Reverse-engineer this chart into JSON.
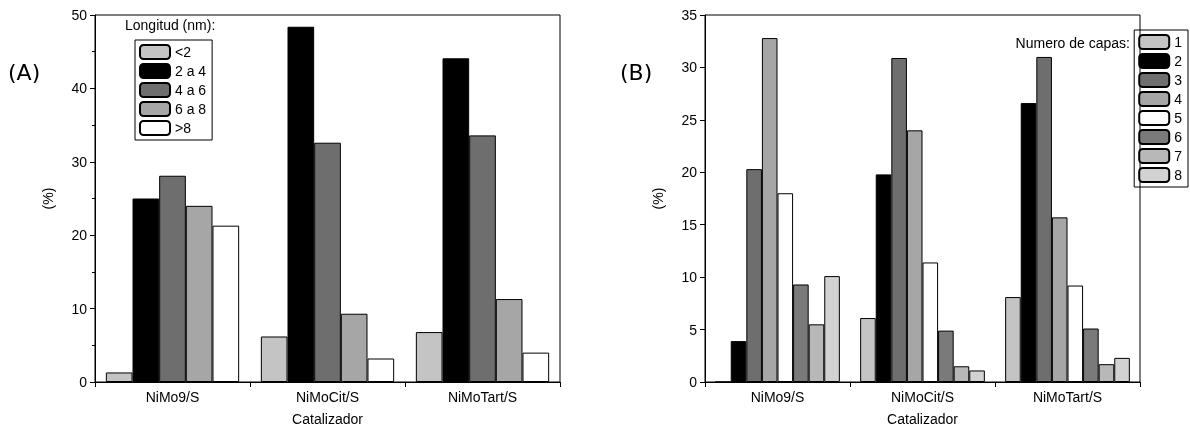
{
  "chart_data": [
    {
      "type": "bar",
      "xlabel": "Catalizador",
      "ylabel": "(%)",
      "legend_title": "Longitud (nm):",
      "annotations": [
        "(A)"
      ],
      "categories": [
        "NiMo9/S",
        "NiMoCit/S",
        "NiMoTart/S"
      ],
      "ylim": [
        0,
        50
      ],
      "yticks": [
        0,
        10,
        20,
        30,
        40,
        50
      ],
      "grid": false,
      "legend": "top left",
      "series": [
        {
          "name": "<2",
          "color": "#c4c4c4",
          "values": [
            1.3,
            6.2,
            6.8
          ]
        },
        {
          "name": "2 a 4",
          "color": "#000000",
          "values": [
            25.0,
            48.4,
            44.1
          ]
        },
        {
          "name": "4 a 6",
          "color": "#6e6e6e",
          "values": [
            28.1,
            32.6,
            33.6
          ]
        },
        {
          "name": "6 a 8",
          "color": "#a6a6a6",
          "values": [
            24.0,
            9.3,
            11.3
          ]
        },
        {
          "name": ">8",
          "color": "#ffffff",
          "values": [
            21.3,
            3.2,
            4.0
          ]
        }
      ]
    },
    {
      "type": "bar",
      "xlabel": "Catalizador",
      "ylabel": "(%)",
      "legend_title": "Numero de capas:",
      "annotations": [
        "(B)"
      ],
      "categories": [
        "NiMo9/S",
        "NiMoCit/S",
        "NiMoTart/S"
      ],
      "ylim": [
        0,
        35
      ],
      "yticks": [
        0,
        5,
        10,
        15,
        20,
        25,
        30,
        35
      ],
      "grid": false,
      "legend": "top right",
      "series": [
        {
          "name": "1",
          "color": "#c4c4c4",
          "values": [
            0,
            6.1,
            8.1
          ]
        },
        {
          "name": "2",
          "color": "#000000",
          "values": [
            3.9,
            19.8,
            26.6
          ]
        },
        {
          "name": "3",
          "color": "#6e6e6e",
          "values": [
            20.3,
            30.9,
            31.0
          ]
        },
        {
          "name": "4",
          "color": "#a6a6a6",
          "values": [
            32.8,
            24.0,
            15.7
          ]
        },
        {
          "name": "5",
          "color": "#ffffff",
          "values": [
            18.0,
            11.4,
            9.2
          ]
        },
        {
          "name": "6",
          "color": "#7a7a7a",
          "values": [
            9.3,
            4.9,
            5.1
          ]
        },
        {
          "name": "7",
          "color": "#b8b8b8",
          "values": [
            5.5,
            1.5,
            1.7
          ]
        },
        {
          "name": "8",
          "color": "#d2d2d2",
          "values": [
            10.1,
            1.1,
            2.3
          ]
        }
      ]
    }
  ]
}
